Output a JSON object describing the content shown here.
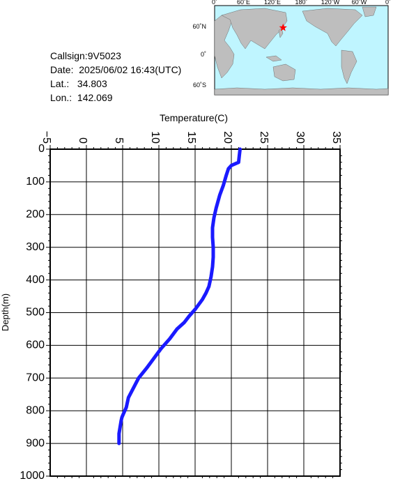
{
  "station": {
    "callsign_label": "Callsign:",
    "callsign": "9V5023",
    "date_label": "Date:",
    "date": "2025/06/02 16:43(UTC)",
    "lat_label": "Lat.:",
    "lat": "34.803",
    "lon_label": "Lon.:",
    "lon": "142.069"
  },
  "map": {
    "top_labels": [
      "0˚",
      "60˚E",
      "120˚E",
      "180˚",
      "120˚W",
      "60˚W",
      "0˚"
    ],
    "left_labels": [
      "60˚N",
      "0˚",
      "60˚S"
    ],
    "ocean_color": "#bff5ff",
    "land_color": "#bebebe",
    "marker_color": "#ff0000",
    "marker_lon": 142.069,
    "marker_lat": 34.803
  },
  "chart_data": {
    "type": "line",
    "xlabel": "Temperature(C)",
    "ylabel": "Depth(m)",
    "xlim": [
      -5,
      35
    ],
    "ylim": [
      0,
      1000
    ],
    "x_ticks": [
      -5,
      0,
      5,
      10,
      15,
      20,
      25,
      30,
      35
    ],
    "y_ticks": [
      0,
      100,
      200,
      300,
      400,
      500,
      600,
      700,
      800,
      900,
      1000
    ],
    "y_inverted": true,
    "grid": true,
    "line_color": "#1a1aff",
    "series": [
      {
        "x": [
          21.2,
          21.1,
          21.0,
          20.0,
          19.6,
          19.3,
          18.9,
          18.4,
          17.9,
          17.6,
          17.4,
          17.4,
          17.5,
          17.5,
          17.4,
          17.2,
          16.9,
          16.5,
          16.0,
          15.0,
          14.2,
          13.5,
          12.5,
          11.5,
          10.3,
          9.3,
          8.3,
          7.2,
          6.5,
          5.8,
          5.5,
          5.1,
          4.9,
          4.8,
          4.5,
          4.5
        ],
        "y": [
          0,
          20,
          40,
          50,
          60,
          80,
          110,
          140,
          180,
          210,
          240,
          270,
          300,
          330,
          360,
          390,
          420,
          440,
          460,
          490,
          510,
          530,
          550,
          580,
          610,
          640,
          670,
          700,
          730,
          760,
          790,
          810,
          820,
          830,
          870,
          900
        ]
      }
    ]
  }
}
